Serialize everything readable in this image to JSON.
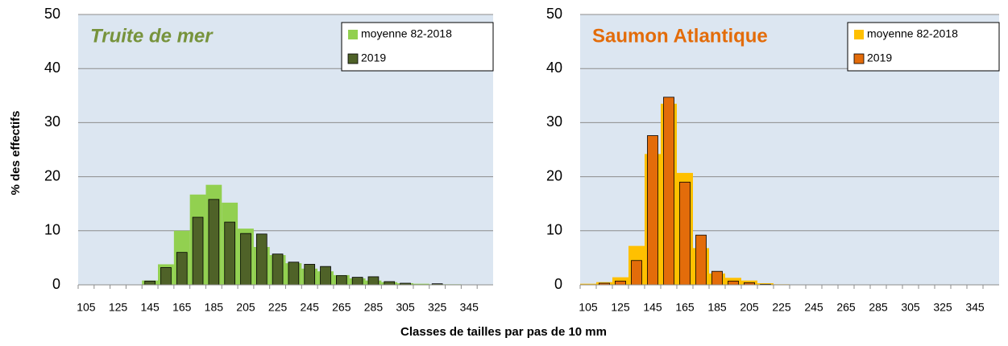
{
  "xlabel": "Classes de tailles par pas de 10 mm",
  "ylabel": "% des effectifs",
  "chart_data": [
    {
      "type": "bar",
      "title": "Truite de mer",
      "title_color": "#77933c",
      "title_italic": true,
      "categories": [
        "105",
        null,
        "125",
        null,
        "145",
        null,
        "165",
        null,
        "185",
        null,
        "205",
        null,
        "225",
        null,
        "245",
        null,
        "265",
        null,
        "285",
        null,
        "305",
        null,
        "325",
        null,
        "345",
        null
      ],
      "series": [
        {
          "name": "moyenne 82-2018",
          "color": "#92d050",
          "values": [
            0,
            0,
            0,
            0,
            0.8,
            3.8,
            10,
            16.7,
            18.5,
            15.2,
            10.4,
            7,
            5.5,
            4,
            3,
            2.5,
            1.8,
            1.2,
            0.8,
            0.5,
            0.3,
            0.2,
            0.1,
            0.1,
            0,
            0
          ]
        },
        {
          "name": "2019",
          "color": "#4f6228",
          "values": [
            0,
            0,
            0,
            0,
            0.7,
            3.2,
            6,
            12.5,
            15.8,
            11.6,
            9.5,
            9.4,
            5.7,
            4.2,
            3.8,
            3.4,
            1.7,
            1.4,
            1.5,
            0.6,
            0.3,
            0,
            0.2,
            0,
            0,
            0
          ]
        }
      ],
      "ylim": [
        0,
        50
      ],
      "yticks": [
        0,
        10,
        20,
        30,
        40,
        50
      ],
      "grid": true,
      "legend": "upper right"
    },
    {
      "type": "bar",
      "title": "Saumon Atlantique",
      "title_color": "#e36c0a",
      "title_italic": false,
      "categories": [
        "105",
        null,
        "125",
        null,
        "145",
        null,
        "165",
        null,
        "185",
        null,
        "205",
        null,
        "225",
        null,
        "245",
        null,
        "265",
        null,
        "285",
        null,
        "305",
        null,
        "325",
        null,
        "345",
        null
      ],
      "series": [
        {
          "name": "moyenne 82-2018",
          "color": "#ffc000",
          "values": [
            0.2,
            0.5,
            1.4,
            7.2,
            24.2,
            33.5,
            20.7,
            6.8,
            2.1,
            1.3,
            0.8,
            0.3,
            0.1,
            0,
            0,
            0,
            0,
            0,
            0,
            0,
            0,
            0,
            0,
            0,
            0,
            0
          ]
        },
        {
          "name": "2019",
          "color": "#e36c0a",
          "values": [
            0,
            0.3,
            0.7,
            4.5,
            27.6,
            34.7,
            19,
            9.2,
            2.5,
            0.7,
            0.4,
            0.1,
            0,
            0,
            0,
            0,
            0,
            0,
            0,
            0,
            0,
            0,
            0,
            0,
            0,
            0
          ]
        }
      ],
      "ylim": [
        0,
        50
      ],
      "yticks": [
        0,
        10,
        20,
        30,
        40,
        50
      ],
      "grid": true,
      "legend": "upper right"
    }
  ]
}
